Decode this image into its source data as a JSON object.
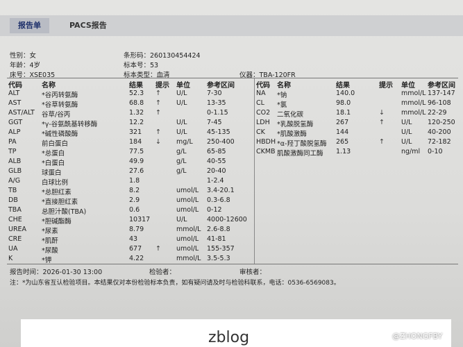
{
  "tabs": [
    "报告单",
    "PACS报告"
  ],
  "info": {
    "gender": "性别：女",
    "age": "年龄：4岁",
    "bed": "床号：XSE035",
    "barcode": "条形码：260130454424",
    "specimen_no": "标本号：53",
    "specimen_type": "标本类型：血清",
    "instrument": "仪器：TBA-120FR"
  },
  "left_table": {
    "headers": [
      "代码",
      "名称",
      "结果",
      "提示",
      "单位",
      "参考区间"
    ],
    "rows": [
      {
        "code": "ALT",
        "name": "*谷丙转氨酶",
        "result": "52.3",
        "flag": "↑",
        "unit": "U/L",
        "ref": "7-30"
      },
      {
        "code": "AST",
        "name": "*谷草转氨酶",
        "result": "68.8",
        "flag": "↑",
        "unit": "U/L",
        "ref": "13-35"
      },
      {
        "code": "AST/ALT",
        "name": "谷草/谷丙",
        "result": "1.32",
        "flag": "↑",
        "ref": "0-1.15"
      },
      {
        "code": "GGT",
        "name": "*γ-谷氨酰基转移酶",
        "result": "12.2",
        "unit": "U/L",
        "ref": "7-45"
      },
      {
        "code": "ALP",
        "name": "*碱性磷酸酶",
        "result": "321",
        "flag": "↑",
        "unit": "U/L",
        "ref": "45-135"
      },
      {
        "code": "PA",
        "name": "前白蛋白",
        "result": "184",
        "flag": "↓",
        "unit": "mg/L",
        "ref": "250-400"
      },
      {
        "code": "TP",
        "name": "*总蛋白",
        "result": "77.5",
        "unit": "g/L",
        "ref": "65-85"
      },
      {
        "code": "ALB",
        "name": "*白蛋白",
        "result": "49.9",
        "unit": "g/L",
        "ref": "40-55"
      },
      {
        "code": "GLB",
        "name": "球蛋白",
        "result": "27.6",
        "unit": "g/L",
        "ref": "20-40"
      },
      {
        "code": "A/G",
        "name": "白球比例",
        "result": "1.8",
        "ref": "1-2.4"
      },
      {
        "code": "TB",
        "name": "*总胆红素",
        "result": "8.2",
        "unit": "umol/L",
        "ref": "3.4-20.1"
      },
      {
        "code": "DB",
        "name": "*直接胆红素",
        "result": "2.9",
        "unit": "umol/L",
        "ref": "0.3-6.8"
      },
      {
        "code": "TBA",
        "name": "总胆汁酸(TBA)",
        "result": "0.6",
        "unit": "umol/L",
        "ref": "0-12"
      },
      {
        "code": "CHE",
        "name": "*胆碱酯酶",
        "result": "10317",
        "unit": "U/L",
        "ref": "4000-12600"
      },
      {
        "code": "UREA",
        "name": "*尿素",
        "result": "8.79",
        "unit": "mmol/L",
        "ref": "2.6-8.8"
      },
      {
        "code": "CRE",
        "name": "*肌酐",
        "result": "43",
        "unit": "umol/L",
        "ref": "41-81"
      },
      {
        "code": "UA",
        "name": "*尿酸",
        "result": "677",
        "flag": "↑",
        "unit": "umol/L",
        "ref": "155-357"
      },
      {
        "code": "K",
        "name": "*钾",
        "result": "4.22",
        "unit": "mmol/L",
        "ref": "3.5-5.3"
      }
    ]
  },
  "right_table": {
    "headers": [
      "代码",
      "名称",
      "结果",
      "提示",
      "单位",
      "参考区间"
    ],
    "rows": [
      {
        "code": "NA",
        "name": "*钠",
        "result": "140.0",
        "unit": "mmol/L",
        "ref": "137-147"
      },
      {
        "code": "CL",
        "name": "*氯",
        "result": "98.0",
        "unit": "mmol/L",
        "ref": "96-108"
      },
      {
        "code": "CO2",
        "name": "二氧化碳",
        "result": "18.1",
        "flag": "↓",
        "unit": "mmol/L",
        "ref": "22-29"
      },
      {
        "code": "LDH",
        "name": "*乳酸脱氢酶",
        "result": "267",
        "flag": "↑",
        "unit": "U/L",
        "ref": "120-250"
      },
      {
        "code": "CK",
        "name": "*肌酸激酶",
        "result": "144",
        "unit": "U/L",
        "ref": "40-200"
      },
      {
        "code": "HBDH",
        "name": "*α-羟丁酸脱氢酶",
        "result": "265",
        "flag": "↑",
        "unit": "U/L",
        "ref": "72-182"
      },
      {
        "code": "CKMB",
        "name": "肌酸激酶同工酶",
        "result": "1.13",
        "unit": "ng/ml",
        "ref": "0-10"
      }
    ]
  },
  "footer": {
    "report_time": "报告时间：2026-01-30 13:00",
    "tester": "检验者：",
    "reviewer": "审核者：",
    "note": "注：*为山东省互认检验项目。本结果仅对本份检验标本负责，如有疑问请及时与检验科联系，电话：0536-6569083。"
  },
  "watermark": {
    "site": "zblog",
    "handle": "@ZHONGFBY"
  }
}
